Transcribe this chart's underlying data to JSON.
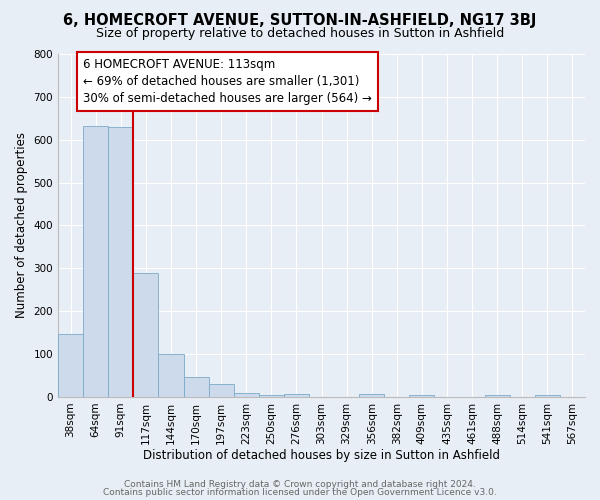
{
  "title": "6, HOMECROFT AVENUE, SUTTON-IN-ASHFIELD, NG17 3BJ",
  "subtitle": "Size of property relative to detached houses in Sutton in Ashfield",
  "xlabel": "Distribution of detached houses by size in Sutton in Ashfield",
  "ylabel": "Number of detached properties",
  "categories": [
    "38sqm",
    "64sqm",
    "91sqm",
    "117sqm",
    "144sqm",
    "170sqm",
    "197sqm",
    "223sqm",
    "250sqm",
    "276sqm",
    "303sqm",
    "329sqm",
    "356sqm",
    "382sqm",
    "409sqm",
    "435sqm",
    "461sqm",
    "488sqm",
    "514sqm",
    "541sqm",
    "567sqm"
  ],
  "values": [
    148,
    632,
    630,
    288,
    100,
    46,
    30,
    10,
    5,
    8,
    0,
    0,
    8,
    0,
    5,
    0,
    0,
    5,
    0,
    5,
    0
  ],
  "bar_color": "#ccdaeb",
  "bar_edge_color": "#7aaac8",
  "background_color": "#e8eef5",
  "grid_color": "#ffffff",
  "vline_x_index": 2.5,
  "vline_color": "#cc0000",
  "annotation_text": "6 HOMECROFT AVENUE: 113sqm\n← 69% of detached houses are smaller (1,301)\n30% of semi-detached houses are larger (564) →",
  "annotation_box_facecolor": "#ffffff",
  "annotation_box_edgecolor": "#cc0000",
  "ylim": [
    0,
    800
  ],
  "yticks": [
    0,
    100,
    200,
    300,
    400,
    500,
    600,
    700,
    800
  ],
  "footer1": "Contains HM Land Registry data © Crown copyright and database right 2024.",
  "footer2": "Contains public sector information licensed under the Open Government Licence v3.0.",
  "title_fontsize": 10.5,
  "subtitle_fontsize": 9,
  "axis_label_fontsize": 8.5,
  "tick_fontsize": 7.5,
  "annotation_fontsize": 8.5,
  "footer_fontsize": 6.5
}
